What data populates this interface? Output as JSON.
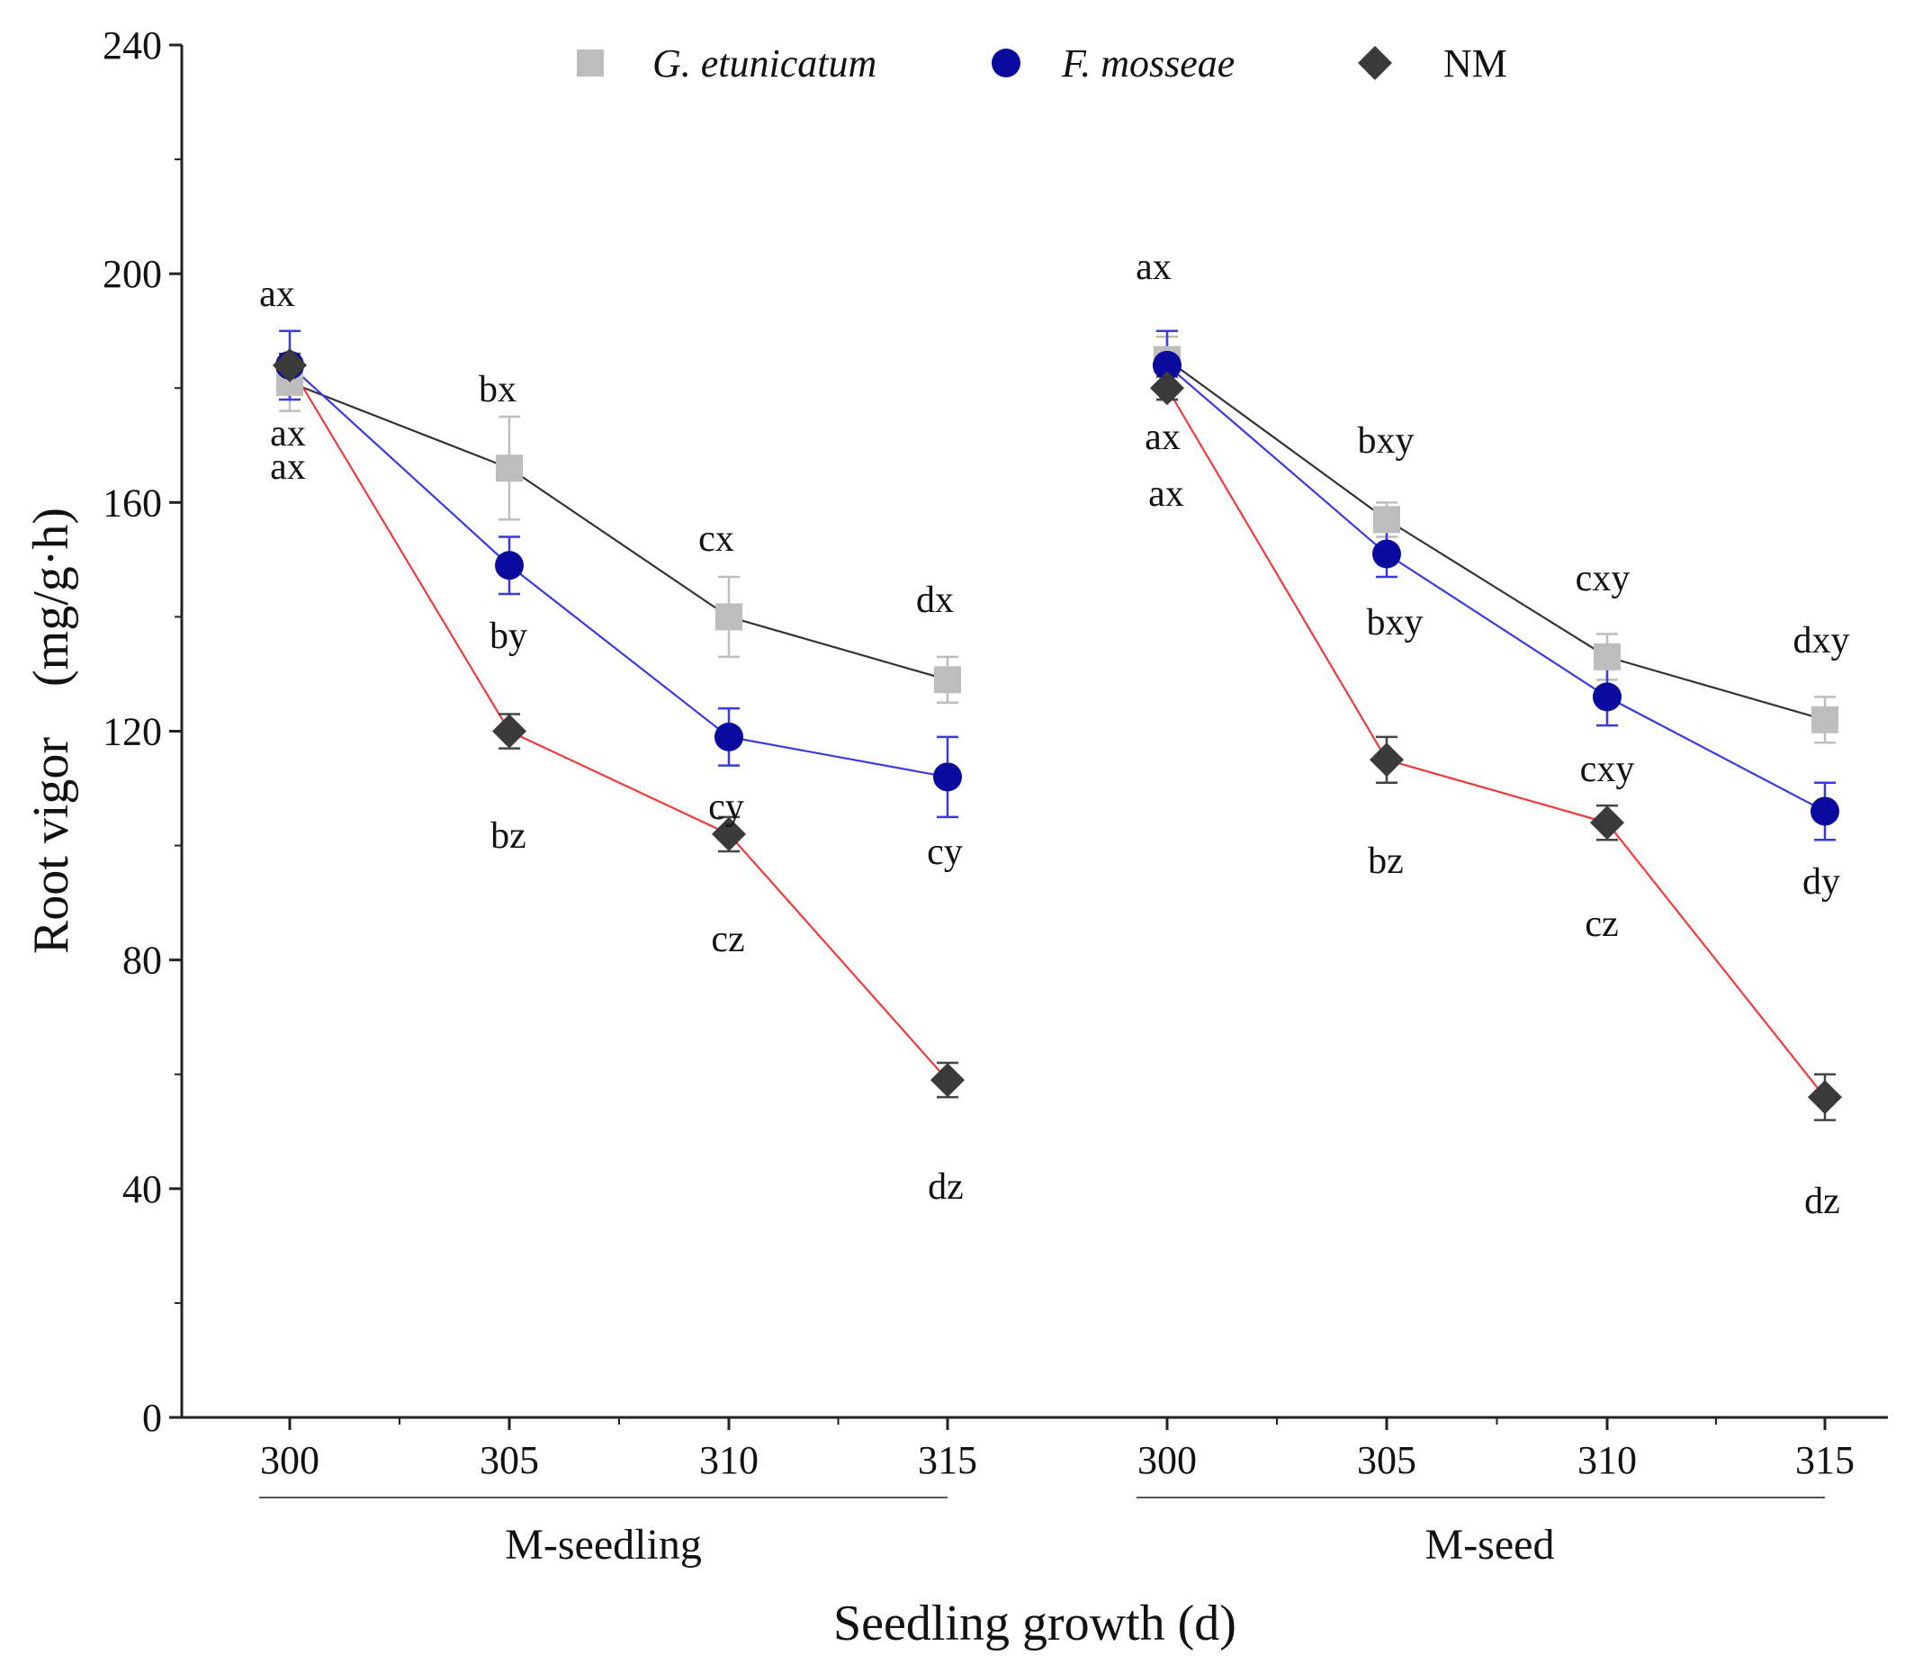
{
  "chart_data": {
    "type": "line",
    "xlabel": "Seedling growth (d)",
    "ylabel": "Root vigor　(mg/g·h)",
    "ylim": [
      0,
      240
    ],
    "yticks": [
      0,
      40,
      80,
      120,
      160,
      200,
      240
    ],
    "grid": false,
    "legend_position": "top",
    "groups": [
      {
        "name": "M-seedling",
        "x": [
          "300",
          "305",
          "310",
          "315"
        ]
      },
      {
        "name": "M-seed",
        "x": [
          "300",
          "305",
          "310",
          "315"
        ]
      }
    ],
    "series": [
      {
        "name": "G. etunicatum",
        "italic": true,
        "marker": "square",
        "marker_color": "#bdbdbd",
        "line_color": "#333333",
        "errorbar_color": "#bdbdbd",
        "groups": [
          {
            "values": [
              181,
              166,
              140,
              129
            ],
            "errors": [
              5,
              9,
              7,
              4
            ],
            "labels": [
              "ax",
              "bx",
              "cx",
              "dx"
            ]
          },
          {
            "values": [
              185,
              157,
              133,
              122
            ],
            "errors": [
              4,
              3,
              4,
              4
            ],
            "labels": [
              "ax",
              "bxy",
              "cxy",
              "dxy"
            ]
          }
        ]
      },
      {
        "name": "F. mosseae",
        "italic": true,
        "marker": "circle",
        "marker_color": "#0a0a9e",
        "line_color": "#3a3ae0",
        "errorbar_color": "#3a3ae0",
        "groups": [
          {
            "values": [
              184,
              149,
              119,
              112
            ],
            "errors": [
              6,
              5,
              5,
              7
            ],
            "labels": [
              "ax",
              "by",
              "cy",
              "cy"
            ]
          },
          {
            "values": [
              184,
              151,
              126,
              106
            ],
            "errors": [
              6,
              4,
              5,
              5
            ],
            "labels": [
              "ax",
              "bxy",
              "cxy",
              "dy"
            ]
          }
        ]
      },
      {
        "name": "NM",
        "italic": false,
        "marker": "diamond",
        "marker_color": "#3a3a3a",
        "line_color": "#ee3a3a",
        "errorbar_color": "#444444",
        "groups": [
          {
            "values": [
              184,
              120,
              102,
              59
            ],
            "errors": [
              2,
              3,
              3,
              3
            ],
            "labels": [
              "ax",
              "bz",
              "cz",
              "dz"
            ]
          },
          {
            "values": [
              180,
              115,
              104,
              56
            ],
            "errors": [
              2,
              4,
              3,
              4
            ],
            "labels": [
              "ax",
              "bz",
              "cz",
              "dz"
            ]
          }
        ]
      }
    ]
  }
}
